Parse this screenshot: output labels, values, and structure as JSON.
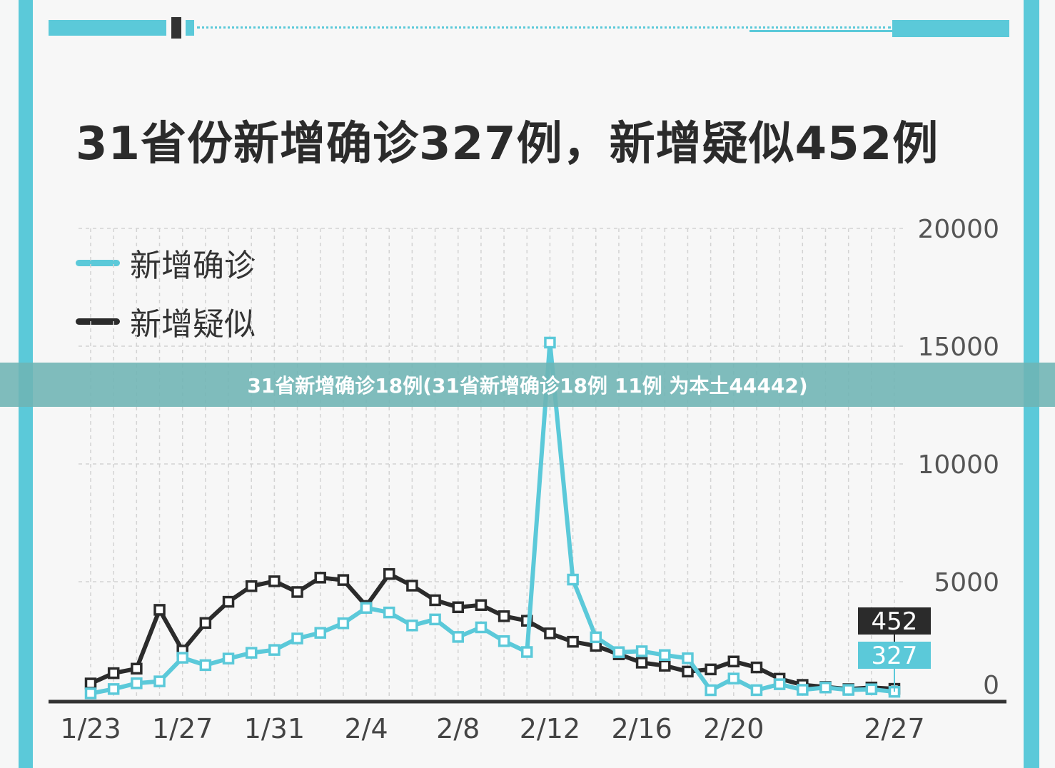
{
  "banner_text": "31省新增确诊18例(31省新增确诊18例 11例 为本土44442)",
  "title": "31省份新增确诊327例，新增疑似452例",
  "colors": {
    "confirmed": "#5bc9d9",
    "suspected": "#2b2b2b",
    "accent": "#5bc9d9"
  },
  "chart_data": {
    "type": "line",
    "title": "31省份新增确诊327例，新增疑似452例",
    "x_tick_labels": [
      "1/23",
      "1/27",
      "1/31",
      "2/4",
      "2/8",
      "2/12",
      "2/16",
      "2/20",
      "2/27"
    ],
    "y_tick_labels": [
      "0",
      "5000",
      "10000",
      "15000",
      "20000"
    ],
    "ylim": [
      0,
      20000
    ],
    "grid": true,
    "legend_position": "top-left",
    "series": [
      {
        "name": "新增确诊",
        "color": "#5bc9d9",
        "points": [
          {
            "x": "1/23",
            "y": 259
          },
          {
            "x": "1/24",
            "y": 444
          },
          {
            "x": "1/25",
            "y": 688
          },
          {
            "x": "1/26",
            "y": 769
          },
          {
            "x": "1/27",
            "y": 1771
          },
          {
            "x": "1/28",
            "y": 1459
          },
          {
            "x": "1/29",
            "y": 1737
          },
          {
            "x": "1/30",
            "y": 1982
          },
          {
            "x": "1/31",
            "y": 2102
          },
          {
            "x": "2/1",
            "y": 2590
          },
          {
            "x": "2/2",
            "y": 2829
          },
          {
            "x": "2/3",
            "y": 3235
          },
          {
            "x": "2/4",
            "y": 3887
          },
          {
            "x": "2/5",
            "y": 3694
          },
          {
            "x": "2/6",
            "y": 3143
          },
          {
            "x": "2/7",
            "y": 3399
          },
          {
            "x": "2/8",
            "y": 2656
          },
          {
            "x": "2/9",
            "y": 3062
          },
          {
            "x": "2/10",
            "y": 2478
          },
          {
            "x": "2/11",
            "y": 2015
          },
          {
            "x": "2/12",
            "y": 15152
          },
          {
            "x": "2/13",
            "y": 5090
          },
          {
            "x": "2/14",
            "y": 2641
          },
          {
            "x": "2/15",
            "y": 2009
          },
          {
            "x": "2/16",
            "y": 2048
          },
          {
            "x": "2/17",
            "y": 1886
          },
          {
            "x": "2/18",
            "y": 1749
          },
          {
            "x": "2/19",
            "y": 394
          },
          {
            "x": "2/20",
            "y": 889
          },
          {
            "x": "2/21",
            "y": 397
          },
          {
            "x": "2/22",
            "y": 648
          },
          {
            "x": "2/23",
            "y": 409
          },
          {
            "x": "2/24",
            "y": 508
          },
          {
            "x": "2/25",
            "y": 406
          },
          {
            "x": "2/26",
            "y": 433
          },
          {
            "x": "2/27",
            "y": 327
          }
        ]
      },
      {
        "name": "新增疑似",
        "color": "#2b2b2b",
        "points": [
          {
            "x": "1/23",
            "y": 680
          },
          {
            "x": "1/24",
            "y": 1118
          },
          {
            "x": "1/25",
            "y": 1309
          },
          {
            "x": "1/26",
            "y": 3806
          },
          {
            "x": "1/27",
            "y": 2077
          },
          {
            "x": "1/28",
            "y": 3248
          },
          {
            "x": "1/29",
            "y": 4148
          },
          {
            "x": "1/30",
            "y": 4812
          },
          {
            "x": "1/31",
            "y": 5019
          },
          {
            "x": "2/1",
            "y": 4562
          },
          {
            "x": "2/2",
            "y": 5173
          },
          {
            "x": "2/3",
            "y": 5072
          },
          {
            "x": "2/4",
            "y": 3971
          },
          {
            "x": "2/5",
            "y": 5328
          },
          {
            "x": "2/6",
            "y": 4833
          },
          {
            "x": "2/7",
            "y": 4214
          },
          {
            "x": "2/8",
            "y": 3916
          },
          {
            "x": "2/9",
            "y": 4008
          },
          {
            "x": "2/10",
            "y": 3536
          },
          {
            "x": "2/11",
            "y": 3342
          },
          {
            "x": "2/12",
            "y": 2807
          },
          {
            "x": "2/13",
            "y": 2450
          },
          {
            "x": "2/14",
            "y": 2277
          },
          {
            "x": "2/15",
            "y": 1918
          },
          {
            "x": "2/16",
            "y": 1563
          },
          {
            "x": "2/17",
            "y": 1432
          },
          {
            "x": "2/18",
            "y": 1185
          },
          {
            "x": "2/19",
            "y": 1277
          },
          {
            "x": "2/20",
            "y": 1614
          },
          {
            "x": "2/21",
            "y": 1361
          },
          {
            "x": "2/22",
            "y": 882
          },
          {
            "x": "2/23",
            "y": 620
          },
          {
            "x": "2/24",
            "y": 530
          },
          {
            "x": "2/25",
            "y": 439
          },
          {
            "x": "2/26",
            "y": 508
          },
          {
            "x": "2/27",
            "y": 452
          }
        ]
      }
    ],
    "end_labels": [
      {
        "series": "新增疑似",
        "text": "452"
      },
      {
        "series": "新增确诊",
        "text": "327"
      }
    ]
  }
}
